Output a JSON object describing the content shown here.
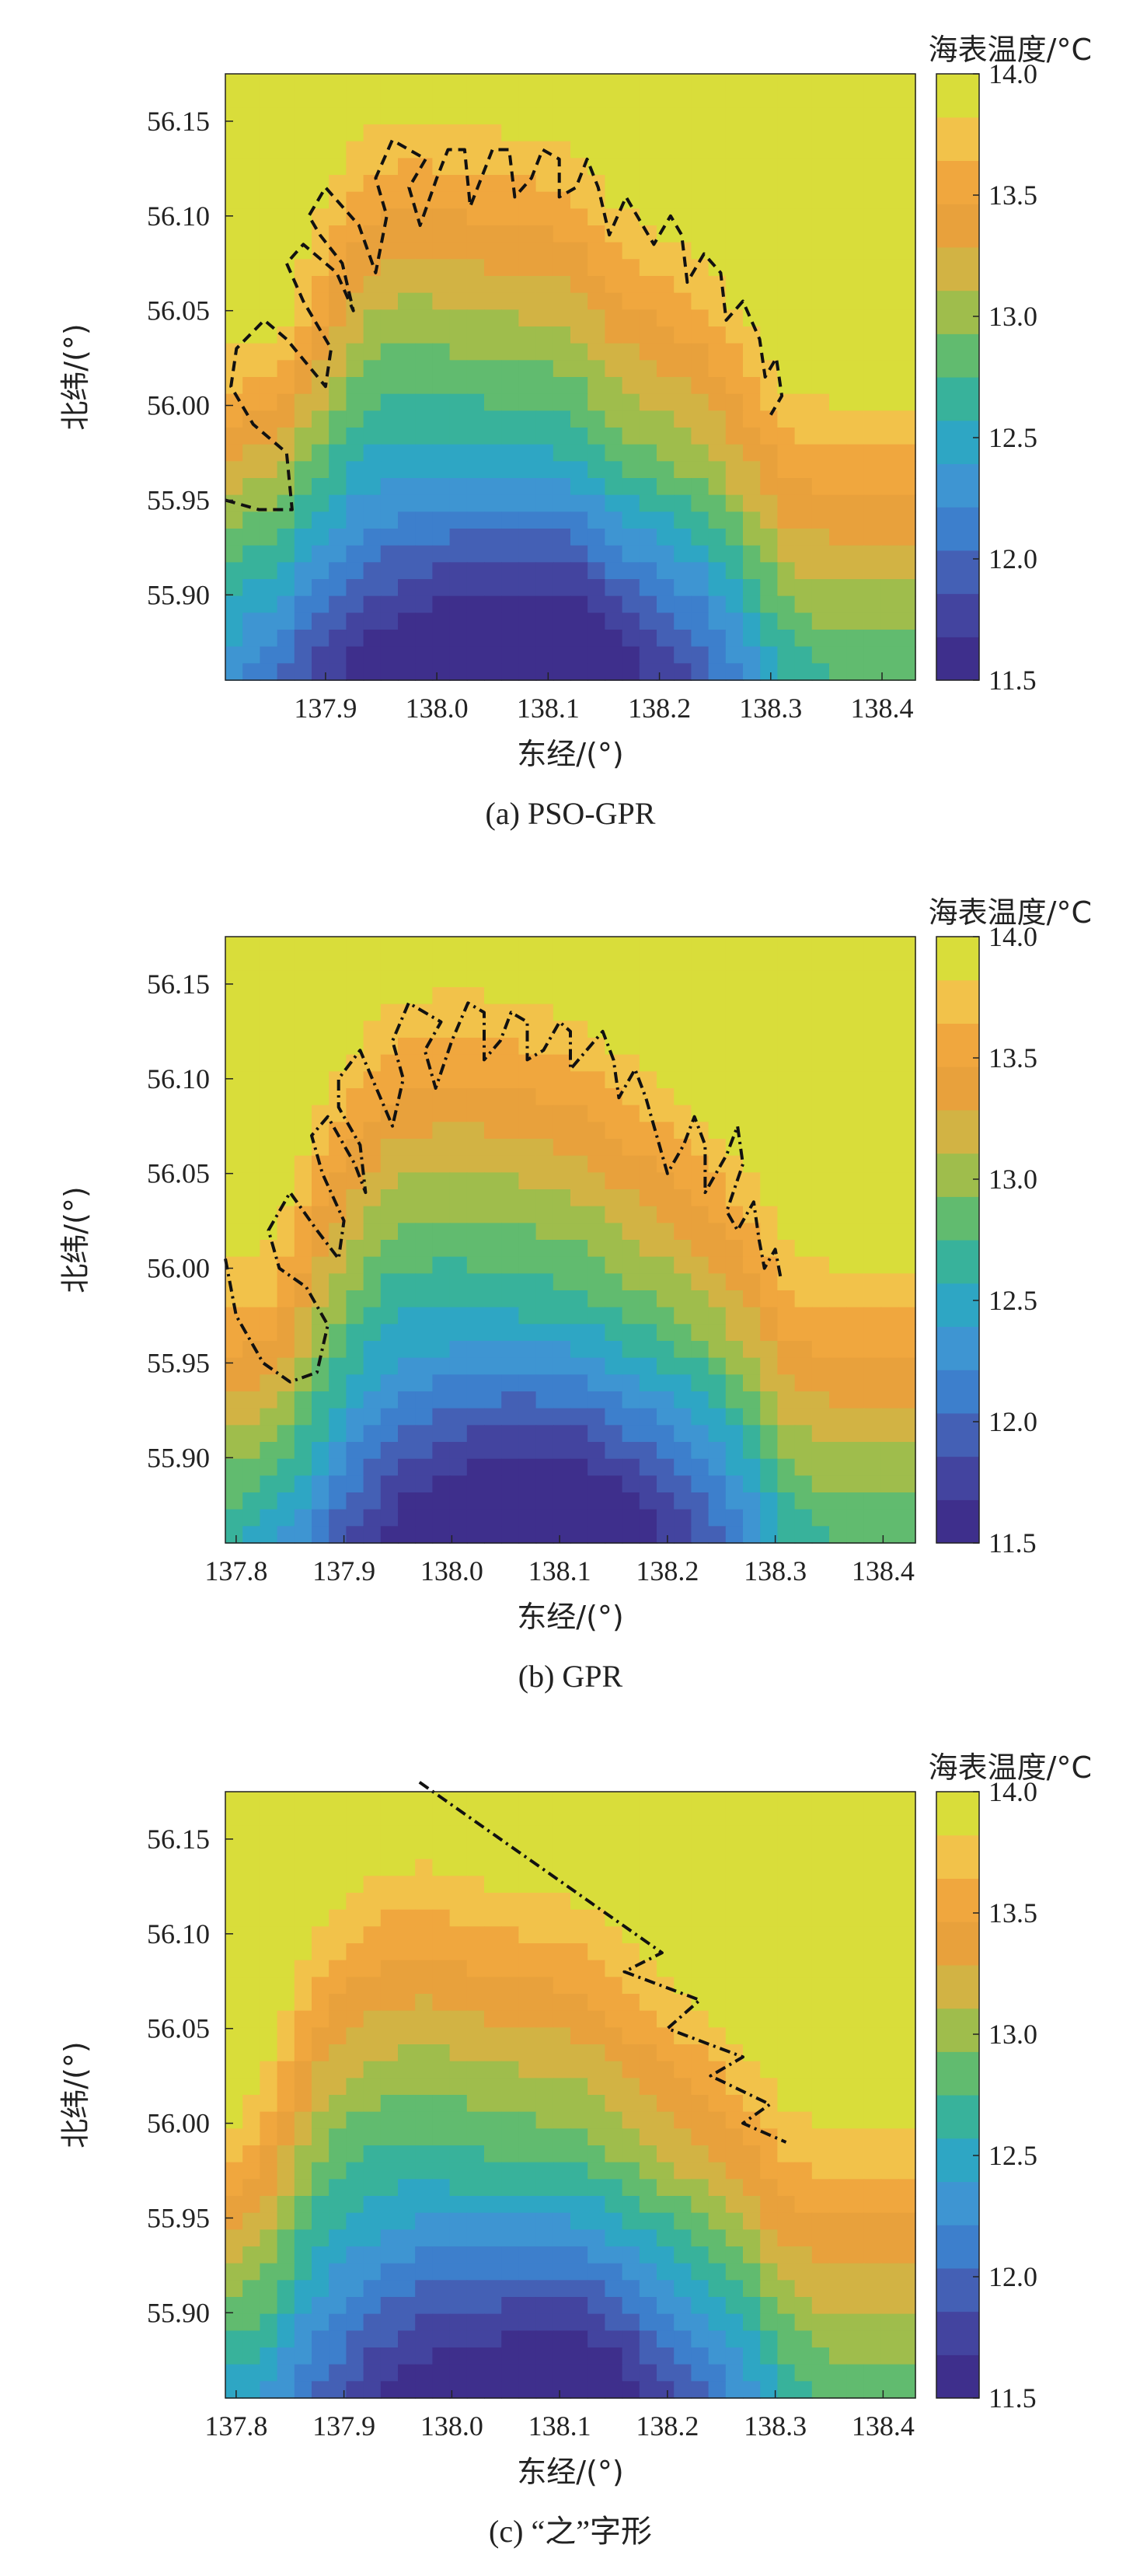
{
  "colorbar_title": "海表温度/°C",
  "colorbar_ticks": [
    "14.0",
    "13.5",
    "13.0",
    "12.5",
    "12.0",
    "11.5"
  ],
  "xlabel": "东经/(°)",
  "ylabel": "北纬/(°)",
  "colors": {
    "scale": [
      "#3e2f8c",
      "#43449f",
      "#4460b5",
      "#3d7fcc",
      "#3e95d2",
      "#2ea6c4",
      "#38b29b",
      "#61bb6f",
      "#9fbd4c",
      "#d2b344",
      "#e8a13c",
      "#f0a73e",
      "#f2c24a",
      "#d9dd3a"
    ],
    "path": "#111111",
    "axis": "#222222"
  },
  "chart_data": [
    {
      "type": "heatmap",
      "caption": "(a) PSO-GPR",
      "xticks": [
        "137.9",
        "138.0",
        "138.1",
        "138.2",
        "138.3",
        "138.4"
      ],
      "yticks": [
        "56.15",
        "56.10",
        "56.05",
        "56.00",
        "55.95",
        "55.90"
      ],
      "xlim": [
        137.81,
        138.43
      ],
      "ylim": [
        55.855,
        56.175
      ],
      "clim": [
        11.5,
        14.0
      ],
      "grid": false,
      "path_style": "dashed",
      "field": {
        "front": [
          [
            137.81,
            56.06
          ],
          [
            137.83,
            56.08
          ],
          [
            137.86,
            56.1
          ],
          [
            137.89,
            56.13
          ],
          [
            137.93,
            56.15
          ],
          [
            137.98,
            56.155
          ],
          [
            138.03,
            56.15
          ],
          [
            138.08,
            56.145
          ],
          [
            138.12,
            56.14
          ],
          [
            138.16,
            56.11
          ],
          [
            138.2,
            56.095
          ],
          [
            138.24,
            56.08
          ],
          [
            138.28,
            56.045
          ],
          [
            138.31,
            56.015
          ],
          [
            138.35,
            56.005
          ],
          [
            138.43,
            56.005
          ]
        ],
        "warm_pocket": [
          137.86,
          56.04,
          0.09,
          0.16,
          0.45
        ]
      },
      "path": [
        [
          137.81,
          55.95
        ],
        [
          137.84,
          55.945
        ],
        [
          137.87,
          55.945
        ],
        [
          137.865,
          55.975
        ],
        [
          137.835,
          55.99
        ],
        [
          137.815,
          56.01
        ],
        [
          137.82,
          56.03
        ],
        [
          137.845,
          56.045
        ],
        [
          137.865,
          56.035
        ],
        [
          137.9,
          56.01
        ],
        [
          137.905,
          56.03
        ],
        [
          137.88,
          56.055
        ],
        [
          137.865,
          56.075
        ],
        [
          137.88,
          56.085
        ],
        [
          137.91,
          56.07
        ],
        [
          137.925,
          56.05
        ],
        [
          137.915,
          56.075
        ],
        [
          137.895,
          56.09
        ],
        [
          137.885,
          56.1
        ],
        [
          137.9,
          56.115
        ],
        [
          137.93,
          56.095
        ],
        [
          137.945,
          56.07
        ],
        [
          137.955,
          56.1
        ],
        [
          137.945,
          56.12
        ],
        [
          137.96,
          56.14
        ],
        [
          137.99,
          56.13
        ],
        [
          137.975,
          56.115
        ],
        [
          137.985,
          56.095
        ],
        [
          138.0,
          56.12
        ],
        [
          138.01,
          56.135
        ],
        [
          138.025,
          56.135
        ],
        [
          138.03,
          56.105
        ],
        [
          138.04,
          56.12
        ],
        [
          138.05,
          56.135
        ],
        [
          138.065,
          56.135
        ],
        [
          138.07,
          56.11
        ],
        [
          138.085,
          56.12
        ],
        [
          138.095,
          56.135
        ],
        [
          138.11,
          56.13
        ],
        [
          138.11,
          56.11
        ],
        [
          138.125,
          56.115
        ],
        [
          138.135,
          56.13
        ],
        [
          138.145,
          56.115
        ],
        [
          138.155,
          56.09
        ],
        [
          138.17,
          56.11
        ],
        [
          138.18,
          56.1
        ],
        [
          138.195,
          56.085
        ],
        [
          138.21,
          56.1
        ],
        [
          138.22,
          56.09
        ],
        [
          138.225,
          56.065
        ],
        [
          138.24,
          56.08
        ],
        [
          138.255,
          56.07
        ],
        [
          138.26,
          56.045
        ],
        [
          138.275,
          56.055
        ],
        [
          138.29,
          56.035
        ],
        [
          138.295,
          56.015
        ],
        [
          138.305,
          56.025
        ],
        [
          138.31,
          56.005
        ],
        [
          138.3,
          55.995
        ]
      ]
    },
    {
      "type": "heatmap",
      "caption": "(b) GPR",
      "xticks": [
        "137.8",
        "137.9",
        "138.0",
        "138.1",
        "138.2",
        "138.3",
        "138.4"
      ],
      "yticks": [
        "56.15",
        "56.10",
        "56.05",
        "56.00",
        "55.95",
        "55.90"
      ],
      "xlim": [
        137.79,
        138.43
      ],
      "ylim": [
        55.855,
        56.175
      ],
      "clim": [
        11.5,
        14.0
      ],
      "grid": false,
      "path_style": "dashdot",
      "field": {
        "front": [
          [
            137.79,
            56.03
          ],
          [
            137.82,
            56.05
          ],
          [
            137.85,
            56.07
          ],
          [
            137.88,
            56.1
          ],
          [
            137.91,
            56.12
          ],
          [
            137.95,
            56.145
          ],
          [
            138.0,
            56.15
          ],
          [
            138.06,
            56.145
          ],
          [
            138.12,
            56.135
          ],
          [
            138.16,
            56.115
          ],
          [
            138.2,
            56.1
          ],
          [
            138.24,
            56.08
          ],
          [
            138.28,
            56.05
          ],
          [
            138.31,
            56.015
          ],
          [
            138.35,
            56.005
          ],
          [
            138.43,
            56.005
          ]
        ],
        "warm_pocket": [
          137.83,
          55.98,
          0.09,
          0.16,
          0.35
        ]
      },
      "path": [
        [
          137.79,
          56.005
        ],
        [
          137.8,
          55.975
        ],
        [
          137.825,
          55.95
        ],
        [
          137.85,
          55.94
        ],
        [
          137.875,
          55.945
        ],
        [
          137.885,
          55.97
        ],
        [
          137.865,
          55.99
        ],
        [
          137.84,
          56.0
        ],
        [
          137.83,
          56.02
        ],
        [
          137.85,
          56.04
        ],
        [
          137.875,
          56.02
        ],
        [
          137.895,
          56.005
        ],
        [
          137.9,
          56.025
        ],
        [
          137.88,
          56.05
        ],
        [
          137.87,
          56.07
        ],
        [
          137.885,
          56.08
        ],
        [
          137.91,
          56.055
        ],
        [
          137.92,
          56.04
        ],
        [
          137.915,
          56.065
        ],
        [
          137.895,
          56.085
        ],
        [
          137.895,
          56.1
        ],
        [
          137.915,
          56.115
        ],
        [
          137.93,
          56.095
        ],
        [
          137.945,
          56.075
        ],
        [
          137.955,
          56.1
        ],
        [
          137.945,
          56.12
        ],
        [
          137.96,
          56.14
        ],
        [
          137.99,
          56.13
        ],
        [
          137.975,
          56.115
        ],
        [
          137.985,
          56.095
        ],
        [
          138.0,
          56.12
        ],
        [
          138.015,
          56.14
        ],
        [
          138.03,
          56.135
        ],
        [
          138.03,
          56.11
        ],
        [
          138.045,
          56.12
        ],
        [
          138.055,
          56.135
        ],
        [
          138.07,
          56.13
        ],
        [
          138.07,
          56.11
        ],
        [
          138.085,
          56.115
        ],
        [
          138.1,
          56.13
        ],
        [
          138.11,
          56.125
        ],
        [
          138.11,
          56.105
        ],
        [
          138.125,
          56.115
        ],
        [
          138.14,
          56.125
        ],
        [
          138.15,
          56.11
        ],
        [
          138.155,
          56.09
        ],
        [
          138.17,
          56.105
        ],
        [
          138.18,
          56.09
        ],
        [
          138.19,
          56.07
        ],
        [
          138.2,
          56.05
        ],
        [
          138.215,
          56.065
        ],
        [
          138.225,
          56.08
        ],
        [
          138.235,
          56.065
        ],
        [
          138.235,
          56.04
        ],
        [
          138.255,
          56.06
        ],
        [
          138.265,
          56.075
        ],
        [
          138.27,
          56.055
        ],
        [
          138.255,
          56.03
        ],
        [
          138.265,
          56.02
        ],
        [
          138.28,
          56.035
        ],
        [
          138.285,
          56.015
        ],
        [
          138.29,
          56.0
        ],
        [
          138.3,
          56.01
        ],
        [
          138.305,
          55.995
        ]
      ]
    },
    {
      "type": "heatmap",
      "caption": "(c) “之”字形",
      "xticks": [
        "137.8",
        "137.9",
        "138.0",
        "138.1",
        "138.2",
        "138.3",
        "138.4"
      ],
      "yticks": [
        "56.15",
        "56.10",
        "56.05",
        "56.00",
        "55.95",
        "55.90"
      ],
      "xlim": [
        137.79,
        138.43
      ],
      "ylim": [
        55.855,
        56.175
      ],
      "clim": [
        11.5,
        14.0
      ],
      "grid": false,
      "path_style": "dashdot",
      "field": {
        "front": [
          [
            137.79,
            56.04
          ],
          [
            137.83,
            56.06
          ],
          [
            137.86,
            56.09
          ],
          [
            137.89,
            56.115
          ],
          [
            137.93,
            56.135
          ],
          [
            137.98,
            56.14
          ],
          [
            138.03,
            56.13
          ],
          [
            138.08,
            56.125
          ],
          [
            138.12,
            56.12
          ],
          [
            138.16,
            56.1
          ],
          [
            138.2,
            56.08
          ],
          [
            138.24,
            56.06
          ],
          [
            138.28,
            56.035
          ],
          [
            138.31,
            56.01
          ],
          [
            138.35,
            56.0
          ],
          [
            138.43,
            56.0
          ]
        ],
        "warm_pocket": [
          137.8,
          56.0,
          0.08,
          0.15,
          0.3
        ]
      },
      "path": [
        [
          137.97,
          56.18
        ],
        [
          138.12,
          56.12
        ],
        [
          138.195,
          56.09
        ],
        [
          138.16,
          56.08
        ],
        [
          138.23,
          56.065
        ],
        [
          138.2,
          56.05
        ],
        [
          138.27,
          56.035
        ],
        [
          138.24,
          56.025
        ],
        [
          138.295,
          56.01
        ],
        [
          138.27,
          56.0
        ],
        [
          138.31,
          55.99
        ]
      ]
    }
  ]
}
